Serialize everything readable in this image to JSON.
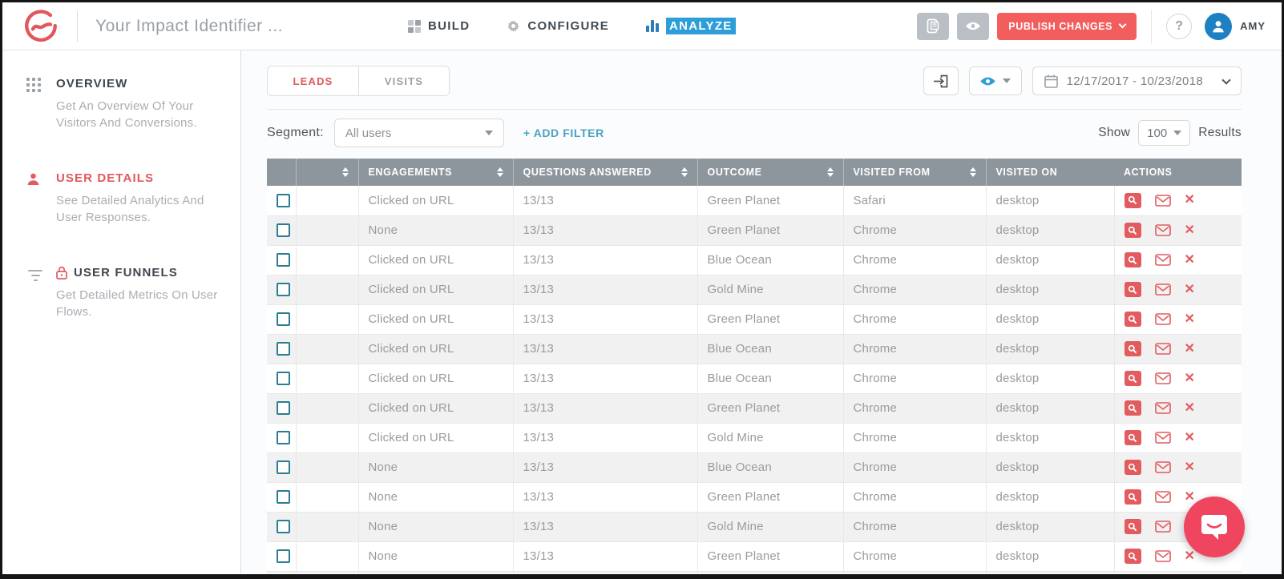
{
  "header": {
    "document_title": "Your Impact Identifier ...",
    "nav": [
      {
        "label": "BUILD",
        "icon": "blocks-icon",
        "active": false
      },
      {
        "label": "CONFIGURE",
        "icon": "gear-icon",
        "active": false
      },
      {
        "label": "ANALYZE",
        "icon": "bar-chart-icon",
        "active": true,
        "highlight": "blue-text-selection"
      }
    ],
    "actions": {
      "notes_button_icon": "document-icon",
      "preview_button_icon": "eye-icon",
      "publish_label": "PUBLISH CHANGES",
      "help_label": "?",
      "user_name": "AMY",
      "avatar_icon": "person-icon"
    }
  },
  "sidebar": {
    "items": [
      {
        "label": "OVERVIEW",
        "description": "Get An Overview Of Your Visitors And Conversions.",
        "icon": "grid-dots-icon",
        "active": false,
        "locked": false
      },
      {
        "label": "USER DETAILS",
        "description": "See Detailed Analytics And User Responses.",
        "icon": "person-icon",
        "active": true,
        "locked": false
      },
      {
        "label": "USER FUNNELS",
        "description": "Get Detailed Metrics On User Flows.",
        "icon": "funnel-icon",
        "active": false,
        "locked": true,
        "lock_icon": "lock-icon"
      }
    ]
  },
  "toolbar": {
    "view_tabs": [
      {
        "label": "LEADS",
        "active": true
      },
      {
        "label": "VISITS",
        "active": false
      }
    ],
    "export_icon": "export-icon",
    "visibility_icon": "eye-icon",
    "date_range": "12/17/2017 - 10/23/2018",
    "date_icon": "calendar-icon"
  },
  "filters": {
    "segment_label": "Segment:",
    "segment_value": "All users",
    "add_filter_label": "+ ADD FILTER",
    "show_label": "Show",
    "show_value": "100",
    "results_label": "Results"
  },
  "table": {
    "columns": [
      {
        "label": "",
        "sortable": false
      },
      {
        "label": "",
        "sortable": true
      },
      {
        "label": "ENGAGEMENTS",
        "sortable": true
      },
      {
        "label": "QUESTIONS ANSWERED",
        "sortable": true
      },
      {
        "label": "OUTCOME",
        "sortable": true
      },
      {
        "label": "VISITED FROM",
        "sortable": true
      },
      {
        "label": "VISITED ON",
        "sortable": false
      },
      {
        "label": "ACTIONS",
        "sortable": false
      }
    ],
    "row_action_icons": [
      "magnifier-icon",
      "envelope-icon",
      "x-icon"
    ],
    "rows": [
      {
        "engagements": "Clicked on URL",
        "questions_answered": "13/13",
        "outcome": "Green Planet",
        "visited_from": "Safari",
        "visited_on": "desktop"
      },
      {
        "engagements": "None",
        "questions_answered": "13/13",
        "outcome": "Green Planet",
        "visited_from": "Chrome",
        "visited_on": "desktop"
      },
      {
        "engagements": "Clicked on URL",
        "questions_answered": "13/13",
        "outcome": "Blue Ocean",
        "visited_from": "Chrome",
        "visited_on": "desktop"
      },
      {
        "engagements": "Clicked on URL",
        "questions_answered": "13/13",
        "outcome": "Gold Mine",
        "visited_from": "Chrome",
        "visited_on": "desktop"
      },
      {
        "engagements": "Clicked on URL",
        "questions_answered": "13/13",
        "outcome": "Green Planet",
        "visited_from": "Chrome",
        "visited_on": "desktop"
      },
      {
        "engagements": "Clicked on URL",
        "questions_answered": "13/13",
        "outcome": "Blue Ocean",
        "visited_from": "Chrome",
        "visited_on": "desktop"
      },
      {
        "engagements": "Clicked on URL",
        "questions_answered": "13/13",
        "outcome": "Blue Ocean",
        "visited_from": "Chrome",
        "visited_on": "desktop"
      },
      {
        "engagements": "Clicked on URL",
        "questions_answered": "13/13",
        "outcome": "Green Planet",
        "visited_from": "Chrome",
        "visited_on": "desktop"
      },
      {
        "engagements": "Clicked on URL",
        "questions_answered": "13/13",
        "outcome": "Gold Mine",
        "visited_from": "Chrome",
        "visited_on": "desktop"
      },
      {
        "engagements": "None",
        "questions_answered": "13/13",
        "outcome": "Blue Ocean",
        "visited_from": "Chrome",
        "visited_on": "desktop"
      },
      {
        "engagements": "None",
        "questions_answered": "13/13",
        "outcome": "Green Planet",
        "visited_from": "Chrome",
        "visited_on": "desktop"
      },
      {
        "engagements": "None",
        "questions_answered": "13/13",
        "outcome": "Gold Mine",
        "visited_from": "Chrome",
        "visited_on": "desktop"
      },
      {
        "engagements": "None",
        "questions_answered": "13/13",
        "outcome": "Green Planet",
        "visited_from": "Chrome",
        "visited_on": "desktop"
      }
    ],
    "has_partial_row": true
  },
  "chat": {
    "launcher_icon": "chat-bubble-icon"
  },
  "colors": {
    "brand_red": "#e2575b",
    "accent_blue": "#2e9ed8",
    "link_teal": "#4aa2c0",
    "header_gray": "#8e969d",
    "row_alt": "#f1f1f2",
    "action_red": "#e25b5e",
    "avatar_blue": "#1c80c3",
    "chat_pink": "#f0455f",
    "checkbox_teal": "#2b7d92"
  }
}
